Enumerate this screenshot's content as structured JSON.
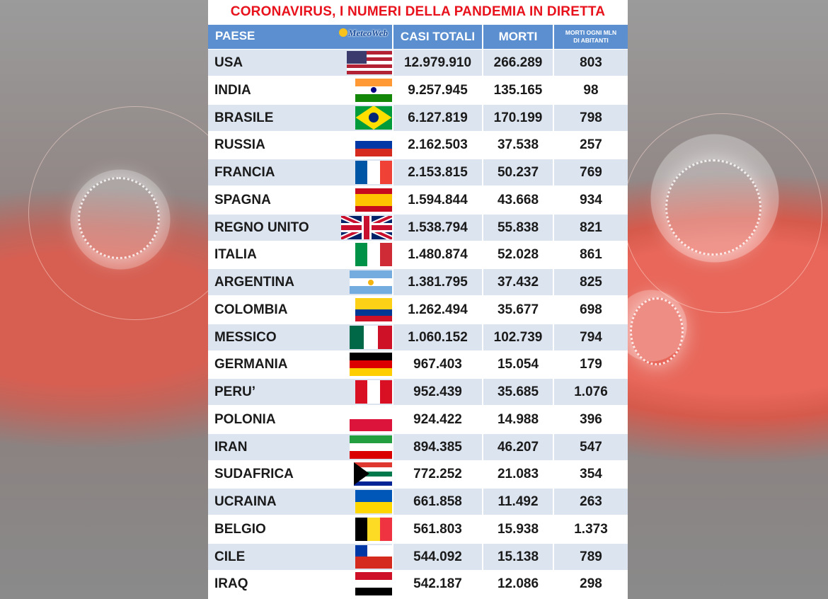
{
  "title": "CORONAVIRUS, I NUMERI DELLA PANDEMIA IN DIRETTA",
  "logo": "MeteoWeb",
  "headers": {
    "paese": "PAESE",
    "casi": "CASI TOTALI",
    "morti": "MORTI",
    "per_mln_line1": "MORTI OGNI MLN",
    "per_mln_line2": "DI ABITANTI"
  },
  "colors": {
    "header": "#5b8fd0",
    "title": "#e8121c",
    "alt_row": "#dce4f0"
  },
  "rows": [
    {
      "paese": "USA",
      "casi": "12.979.910",
      "morti": "266.289",
      "per_mln": "803",
      "flag": "us-flag"
    },
    {
      "paese": "INDIA",
      "casi": "9.257.945",
      "morti": "135.165",
      "per_mln": "98",
      "flag": "in-flag"
    },
    {
      "paese": "BRASILE",
      "casi": "6.127.819",
      "morti": "170.199",
      "per_mln": "798",
      "flag": "br-flag"
    },
    {
      "paese": "RUSSIA",
      "casi": "2.162.503",
      "morti": "37.538",
      "per_mln": "257",
      "flag": "ru-flag"
    },
    {
      "paese": "FRANCIA",
      "casi": "2.153.815",
      "morti": "50.237",
      "per_mln": "769",
      "flag": "fr-flag"
    },
    {
      "paese": "SPAGNA",
      "casi": "1.594.844",
      "morti": "43.668",
      "per_mln": "934",
      "flag": "es-flag"
    },
    {
      "paese": "REGNO UNITO",
      "casi": "1.538.794",
      "morti": "55.838",
      "per_mln": "821",
      "flag": "gb-flag"
    },
    {
      "paese": "ITALIA",
      "casi": "1.480.874",
      "morti": "52.028",
      "per_mln": "861",
      "flag": "it-flag"
    },
    {
      "paese": "ARGENTINA",
      "casi": "1.381.795",
      "morti": "37.432",
      "per_mln": "825",
      "flag": "ar-flag"
    },
    {
      "paese": "COLOMBIA",
      "casi": "1.262.494",
      "morti": "35.677",
      "per_mln": "698",
      "flag": "co-flag"
    },
    {
      "paese": "MESSICO",
      "casi": "1.060.152",
      "morti": "102.739",
      "per_mln": "794",
      "flag": "mx-flag"
    },
    {
      "paese": "GERMANIA",
      "casi": "967.403",
      "morti": "15.054",
      "per_mln": "179",
      "flag": "de-flag"
    },
    {
      "paese": "PERU’",
      "casi": "952.439",
      "morti": "35.685",
      "per_mln": "1.076",
      "flag": "pe-flag"
    },
    {
      "paese": "POLONIA",
      "casi": "924.422",
      "morti": "14.988",
      "per_mln": "396",
      "flag": "pl-flag"
    },
    {
      "paese": "IRAN",
      "casi": "894.385",
      "morti": "46.207",
      "per_mln": "547",
      "flag": "ir-flag"
    },
    {
      "paese": "SUDAFRICA",
      "casi": "772.252",
      "morti": "21.083",
      "per_mln": "354",
      "flag": "za-flag"
    },
    {
      "paese": "UCRAINA",
      "casi": "661.858",
      "morti": "11.492",
      "per_mln": "263",
      "flag": "ua-flag"
    },
    {
      "paese": "BELGIO",
      "casi": "561.803",
      "morti": "15.938",
      "per_mln": "1.373",
      "flag": "be-flag"
    },
    {
      "paese": "CILE",
      "casi": "544.092",
      "morti": "15.138",
      "per_mln": "789",
      "flag": "cl-flag"
    },
    {
      "paese": "IRAQ",
      "casi": "542.187",
      "morti": "12.086",
      "per_mln": "298",
      "flag": "iq-flag"
    }
  ]
}
